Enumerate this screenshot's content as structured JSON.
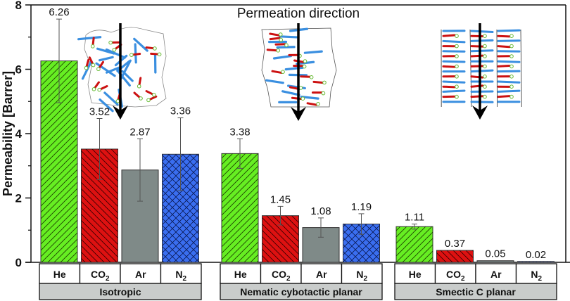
{
  "chart_data": {
    "type": "bar",
    "title": "Permeation direction",
    "ylabel": "Permeability [Barrer]",
    "xlabel": "",
    "ylim": [
      0,
      8
    ],
    "yticks": [
      0,
      2,
      4,
      6,
      8
    ],
    "grid": false,
    "legend": null,
    "groups": [
      "Isotropic",
      "Nematic cybotactic planar",
      "Smectic C planar"
    ],
    "categories": [
      "He",
      "CO2",
      "Ar",
      "N2"
    ],
    "category_labels": [
      {
        "base": "He",
        "sub": ""
      },
      {
        "base": "CO",
        "sub": "2"
      },
      {
        "base": "Ar",
        "sub": ""
      },
      {
        "base": "N",
        "sub": "2"
      }
    ],
    "series": [
      {
        "name": "Isotropic",
        "values": [
          6.26,
          3.52,
          2.87,
          3.36
        ],
        "errors": [
          1.3,
          0.95,
          0.97,
          1.13
        ],
        "labels": [
          "6.26",
          "3.52",
          "2.87",
          "3.36"
        ]
      },
      {
        "name": "Nematic cybotactic planar",
        "values": [
          3.38,
          1.45,
          1.08,
          1.19
        ],
        "errors": [
          0.46,
          0.29,
          0.3,
          0.32
        ],
        "labels": [
          "3.38",
          "1.45",
          "1.08",
          "1.19"
        ]
      },
      {
        "name": "Smectic C planar",
        "values": [
          1.11,
          0.37,
          0.05,
          0.02
        ],
        "errors": [
          0.08,
          0.0,
          0.0,
          0.0
        ],
        "labels": [
          "1.11",
          "0.37",
          "0.05",
          "0.02"
        ]
      }
    ],
    "colors": {
      "He": "#66ee22",
      "CO2": "#dd1111",
      "Ar": "#7f8a88",
      "N2": "#3a6ef0"
    },
    "patterns": {
      "He": "forward-diagonal",
      "CO2": "back-diagonal",
      "Ar": "solid",
      "N2": "crosshatch"
    },
    "annotations": [
      "Permeation direction arrows over schematic molecular packing illustrations for each phase"
    ]
  },
  "ui": {
    "group_label_bg": "#c9cccb",
    "axis_color": "#111111",
    "error_bar_color": "#555555"
  }
}
